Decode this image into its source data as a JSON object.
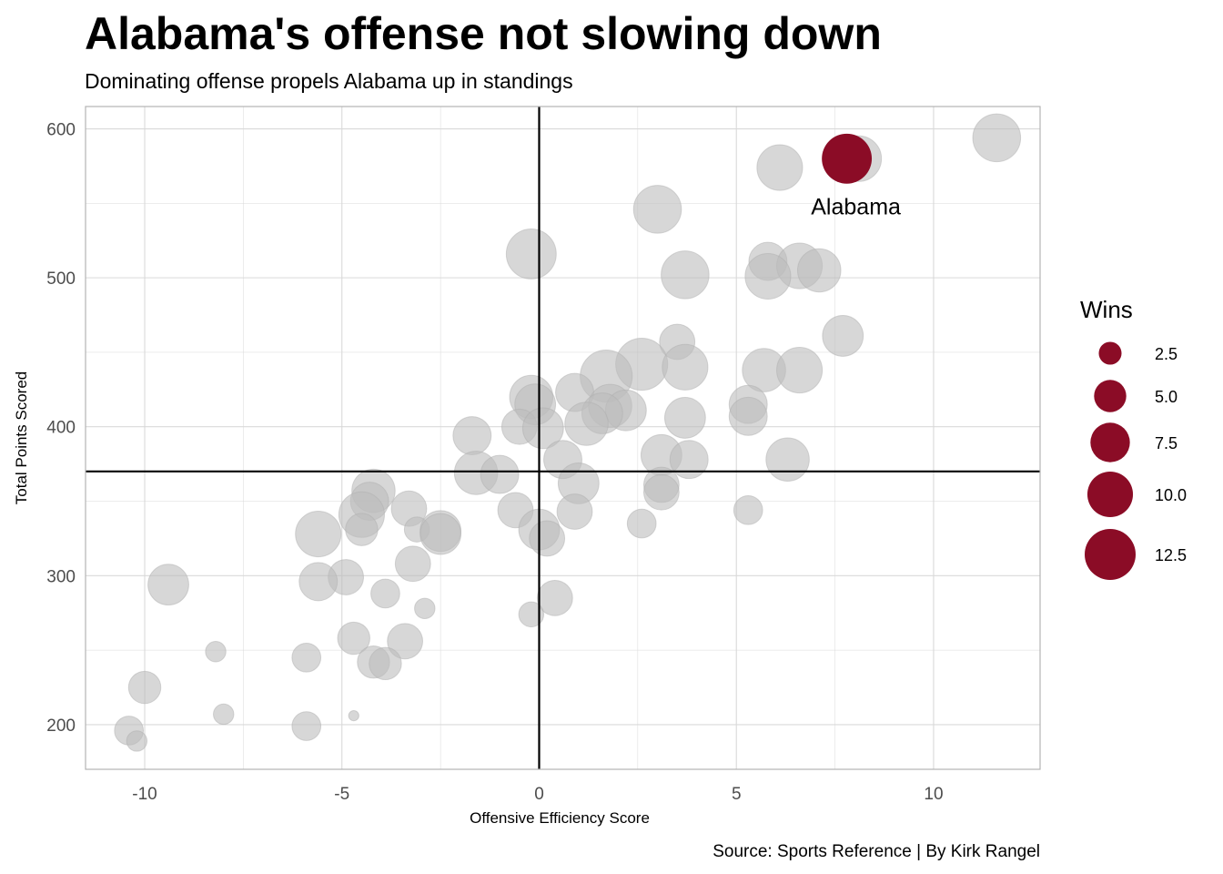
{
  "chart_data": {
    "type": "scatter",
    "title": "Alabama's offense not slowing down",
    "subtitle": "Dominating offense propels Alabama up in standings",
    "xlabel": "Offensive Efficiency Score",
    "ylabel": "Total Points Scored",
    "caption": "Source: Sports Reference | By Kirk Rangel",
    "xlim": [
      -11.5,
      12.7
    ],
    "ylim": [
      170,
      615
    ],
    "xticks": [
      -10,
      -5,
      0,
      5,
      10
    ],
    "xtick_labels": [
      "-10",
      "-5",
      "0",
      "5",
      "10"
    ],
    "yticks": [
      200,
      300,
      400,
      500,
      600
    ],
    "ytick_labels": [
      "200",
      "300",
      "400",
      "500",
      "600"
    ],
    "grid": true,
    "reference_lines": {
      "x": 0,
      "y": 370
    },
    "size_legend": {
      "title": "Wins",
      "values": [
        2.5,
        5.0,
        7.5,
        10.0,
        12.5
      ],
      "labels": [
        "2.5",
        "5.0",
        "7.5",
        "10.0",
        "12.5"
      ],
      "position": "right"
    },
    "colors": {
      "highlight": "#8b0c26",
      "others": "#bdbdbd",
      "grid": "#d9d9d9",
      "panel_border": "#b3b3b3"
    },
    "highlight": {
      "name": "Alabama",
      "x": 7.8,
      "y": 580,
      "wins": 12
    },
    "points": [
      {
        "x": 11.6,
        "y": 594,
        "wins": 11
      },
      {
        "x": 8.1,
        "y": 580,
        "wins": 10
      },
      {
        "x": 6.1,
        "y": 574,
        "wins": 10
      },
      {
        "x": 3.0,
        "y": 546,
        "wins": 11
      },
      {
        "x": -0.2,
        "y": 516,
        "wins": 12
      },
      {
        "x": 5.8,
        "y": 511,
        "wins": 7
      },
      {
        "x": 6.6,
        "y": 508,
        "wins": 10
      },
      {
        "x": 7.1,
        "y": 505,
        "wins": 9
      },
      {
        "x": 3.7,
        "y": 502,
        "wins": 11
      },
      {
        "x": 5.8,
        "y": 501,
        "wins": 10
      },
      {
        "x": 7.7,
        "y": 461,
        "wins": 8
      },
      {
        "x": 3.5,
        "y": 457,
        "wins": 6
      },
      {
        "x": 2.6,
        "y": 442,
        "wins": 13
      },
      {
        "x": 3.7,
        "y": 440,
        "wins": 10
      },
      {
        "x": 5.7,
        "y": 438,
        "wins": 9
      },
      {
        "x": 6.6,
        "y": 438,
        "wins": 10
      },
      {
        "x": 1.7,
        "y": 434,
        "wins": 13
      },
      {
        "x": 0.9,
        "y": 423,
        "wins": 7
      },
      {
        "x": -0.2,
        "y": 420,
        "wins": 9
      },
      {
        "x": -0.1,
        "y": 415,
        "wins": 8
      },
      {
        "x": 5.3,
        "y": 415,
        "wins": 7
      },
      {
        "x": 1.8,
        "y": 414,
        "wins": 9
      },
      {
        "x": 2.2,
        "y": 411,
        "wins": 8
      },
      {
        "x": 1.6,
        "y": 409,
        "wins": 8
      },
      {
        "x": 5.3,
        "y": 407,
        "wins": 7
      },
      {
        "x": 3.7,
        "y": 406,
        "wins": 8
      },
      {
        "x": 1.2,
        "y": 402,
        "wins": 9
      },
      {
        "x": -0.5,
        "y": 400,
        "wins": 6
      },
      {
        "x": 0.1,
        "y": 399,
        "wins": 8
      },
      {
        "x": -1.7,
        "y": 394,
        "wins": 7
      },
      {
        "x": 3.1,
        "y": 381,
        "wins": 8
      },
      {
        "x": 0.6,
        "y": 378,
        "wins": 7
      },
      {
        "x": 3.8,
        "y": 378,
        "wins": 7
      },
      {
        "x": 6.3,
        "y": 378,
        "wins": 9
      },
      {
        "x": -1.6,
        "y": 369,
        "wins": 9
      },
      {
        "x": -1.0,
        "y": 368,
        "wins": 7
      },
      {
        "x": 1.0,
        "y": 362,
        "wins": 8
      },
      {
        "x": 3.1,
        "y": 361,
        "wins": 6
      },
      {
        "x": 3.1,
        "y": 356,
        "wins": 6
      },
      {
        "x": -4.2,
        "y": 357,
        "wins": 9
      },
      {
        "x": -4.3,
        "y": 350,
        "wins": 7
      },
      {
        "x": -3.3,
        "y": 345,
        "wins": 6
      },
      {
        "x": -0.6,
        "y": 344,
        "wins": 6
      },
      {
        "x": 0.9,
        "y": 343,
        "wins": 6
      },
      {
        "x": 5.3,
        "y": 344,
        "wins": 4
      },
      {
        "x": -4.5,
        "y": 341,
        "wins": 10
      },
      {
        "x": 2.6,
        "y": 335,
        "wins": 4
      },
      {
        "x": -4.5,
        "y": 331,
        "wins": 5
      },
      {
        "x": -3.1,
        "y": 331,
        "wins": 3
      },
      {
        "x": -2.5,
        "y": 330,
        "wins": 8
      },
      {
        "x": 0.0,
        "y": 331,
        "wins": 8
      },
      {
        "x": -2.5,
        "y": 328,
        "wins": 8
      },
      {
        "x": -5.6,
        "y": 328,
        "wins": 10
      },
      {
        "x": 0.2,
        "y": 325,
        "wins": 6
      },
      {
        "x": -3.2,
        "y": 308,
        "wins": 6
      },
      {
        "x": -4.9,
        "y": 299,
        "wins": 6
      },
      {
        "x": -5.6,
        "y": 296,
        "wins": 7
      },
      {
        "x": -9.4,
        "y": 294,
        "wins": 8
      },
      {
        "x": -3.9,
        "y": 288,
        "wins": 4
      },
      {
        "x": 0.4,
        "y": 285,
        "wins": 6
      },
      {
        "x": -2.9,
        "y": 278,
        "wins": 2
      },
      {
        "x": -0.2,
        "y": 274,
        "wins": 3
      },
      {
        "x": -4.7,
        "y": 258,
        "wins": 5
      },
      {
        "x": -3.4,
        "y": 256,
        "wins": 6
      },
      {
        "x": -8.2,
        "y": 249,
        "wins": 2
      },
      {
        "x": -5.9,
        "y": 245,
        "wins": 4
      },
      {
        "x": -4.2,
        "y": 242,
        "wins": 5
      },
      {
        "x": -3.9,
        "y": 241,
        "wins": 5
      },
      {
        "x": -10.0,
        "y": 225,
        "wins": 5
      },
      {
        "x": -8.0,
        "y": 207,
        "wins": 2
      },
      {
        "x": -4.7,
        "y": 206,
        "wins": 0.5
      },
      {
        "x": -5.9,
        "y": 199,
        "wins": 4
      },
      {
        "x": -10.4,
        "y": 196,
        "wins": 4
      },
      {
        "x": -10.2,
        "y": 189,
        "wins": 2
      }
    ]
  }
}
